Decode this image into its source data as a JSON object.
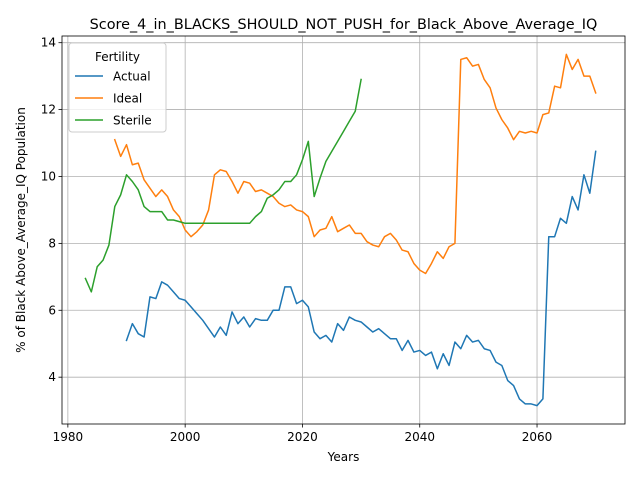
{
  "chart_data": {
    "type": "line",
    "title": "Score_4_in_BLACKS_SHOULD_NOT_PUSH_for_Black_Above_Average_IQ",
    "xlabel": "Years",
    "ylabel": "% of Black Above_Average_IQ Population",
    "xlim": [
      1979,
      2075
    ],
    "ylim": [
      2.6,
      14.2
    ],
    "xticks": [
      1980,
      2000,
      2020,
      2040,
      2060
    ],
    "yticks": [
      4,
      6,
      8,
      10,
      12,
      14
    ],
    "grid": true,
    "legend": {
      "title": "Fertility",
      "placement": "top-left"
    },
    "colors": {
      "Actual": "#1f77b4",
      "Ideal": "#ff7f0e",
      "Sterile": "#2ca02c"
    },
    "series": [
      {
        "name": "Actual",
        "x": [
          1990,
          1991,
          1992,
          1993,
          1994,
          1995,
          1996,
          1997,
          1998,
          1999,
          2000,
          2001,
          2002,
          2003,
          2004,
          2005,
          2006,
          2007,
          2008,
          2009,
          2010,
          2011,
          2012,
          2013,
          2014,
          2015,
          2016,
          2017,
          2018,
          2019,
          2020,
          2021,
          2022,
          2023,
          2024,
          2025,
          2026,
          2027,
          2028,
          2029,
          2030,
          2031,
          2032,
          2033,
          2034,
          2035,
          2036,
          2037,
          2038,
          2039,
          2040,
          2041,
          2042,
          2043,
          2044,
          2045,
          2046,
          2047,
          2048,
          2049,
          2050,
          2051,
          2052,
          2053,
          2054,
          2055,
          2056,
          2057,
          2058,
          2059,
          2060,
          2061,
          2062,
          2063,
          2064,
          2065,
          2066,
          2067,
          2068,
          2069,
          2070
        ],
        "values": [
          5.1,
          5.6,
          5.3,
          5.2,
          6.4,
          6.35,
          6.85,
          6.75,
          6.55,
          6.35,
          6.3,
          6.1,
          5.9,
          5.7,
          5.45,
          5.2,
          5.5,
          5.25,
          5.95,
          5.6,
          5.8,
          5.5,
          5.75,
          5.7,
          5.7,
          6.0,
          6.0,
          6.7,
          6.7,
          6.2,
          6.3,
          6.1,
          5.35,
          5.15,
          5.25,
          5.05,
          5.6,
          5.4,
          5.8,
          5.7,
          5.65,
          5.5,
          5.35,
          5.45,
          5.3,
          5.15,
          5.15,
          4.8,
          5.1,
          4.75,
          4.8,
          4.65,
          4.75,
          4.25,
          4.7,
          4.35,
          5.05,
          4.85,
          5.25,
          5.05,
          5.1,
          4.85,
          4.8,
          4.45,
          4.35,
          3.9,
          3.75,
          3.35,
          3.2,
          3.2,
          3.15,
          3.35,
          8.2,
          8.2,
          8.75,
          8.6,
          9.4,
          9.0,
          10.05,
          9.5,
          10.75
        ]
      },
      {
        "name": "Ideal",
        "x": [
          1988,
          1989,
          1990,
          1991,
          1992,
          1993,
          1994,
          1995,
          1996,
          1997,
          1998,
          1999,
          2000,
          2001,
          2002,
          2003,
          2004,
          2005,
          2006,
          2007,
          2008,
          2009,
          2010,
          2011,
          2012,
          2013,
          2014,
          2015,
          2016,
          2017,
          2018,
          2019,
          2020,
          2021,
          2022,
          2023,
          2024,
          2025,
          2026,
          2027,
          2028,
          2029,
          2030,
          2031,
          2032,
          2033,
          2034,
          2035,
          2036,
          2037,
          2038,
          2039,
          2040,
          2041,
          2042,
          2043,
          2044,
          2045,
          2046,
          2047,
          2048,
          2049,
          2050,
          2051,
          2052,
          2053,
          2054,
          2055,
          2056,
          2057,
          2058,
          2059,
          2060,
          2061,
          2062,
          2063,
          2064,
          2065,
          2066,
          2067,
          2068,
          2069,
          2070
        ],
        "values": [
          11.1,
          10.6,
          10.95,
          10.35,
          10.4,
          9.9,
          9.65,
          9.4,
          9.6,
          9.4,
          9.0,
          8.8,
          8.4,
          8.2,
          8.35,
          8.55,
          9.0,
          10.05,
          10.2,
          10.15,
          9.85,
          9.5,
          9.85,
          9.8,
          9.55,
          9.6,
          9.5,
          9.4,
          9.2,
          9.1,
          9.15,
          9.0,
          8.95,
          8.8,
          8.2,
          8.4,
          8.45,
          8.8,
          8.35,
          8.45,
          8.55,
          8.3,
          8.3,
          8.05,
          7.95,
          7.9,
          8.2,
          8.3,
          8.1,
          7.8,
          7.75,
          7.4,
          7.2,
          7.1,
          7.4,
          7.75,
          7.55,
          7.9,
          8.0,
          13.5,
          13.55,
          13.3,
          13.35,
          12.9,
          12.65,
          12.05,
          11.7,
          11.45,
          11.1,
          11.35,
          11.3,
          11.35,
          11.3,
          11.85,
          11.9,
          12.7,
          12.65,
          13.65,
          13.2,
          13.5,
          13.0,
          13.0,
          12.5
        ]
      },
      {
        "name": "Sterile",
        "x": [
          1983,
          1984,
          1985,
          1986,
          1987,
          1988,
          1989,
          1990,
          1991,
          1992,
          1993,
          1994,
          1995,
          1996,
          1997,
          1998,
          1999,
          2000,
          2001,
          2002,
          2003,
          2004,
          2005,
          2006,
          2007,
          2008,
          2009,
          2010,
          2011,
          2012,
          2013,
          2014,
          2015,
          2016,
          2017,
          2018,
          2019,
          2020,
          2021,
          2022,
          2023,
          2024,
          2025,
          2026,
          2027,
          2028,
          2029,
          2030
        ],
        "values": [
          6.95,
          6.55,
          7.3,
          7.5,
          7.95,
          9.1,
          9.45,
          10.05,
          9.85,
          9.6,
          9.1,
          8.95,
          8.95,
          8.95,
          8.7,
          8.7,
          8.65,
          8.6,
          8.6,
          8.6,
          8.6,
          8.6,
          8.6,
          8.6,
          8.6,
          8.6,
          8.6,
          8.6,
          8.6,
          8.8,
          8.95,
          9.35,
          9.45,
          9.6,
          9.85,
          9.85,
          10.05,
          10.5,
          11.05,
          9.4,
          9.95,
          10.45,
          10.75,
          11.05,
          11.35,
          11.65,
          11.95,
          12.9
        ]
      }
    ]
  }
}
